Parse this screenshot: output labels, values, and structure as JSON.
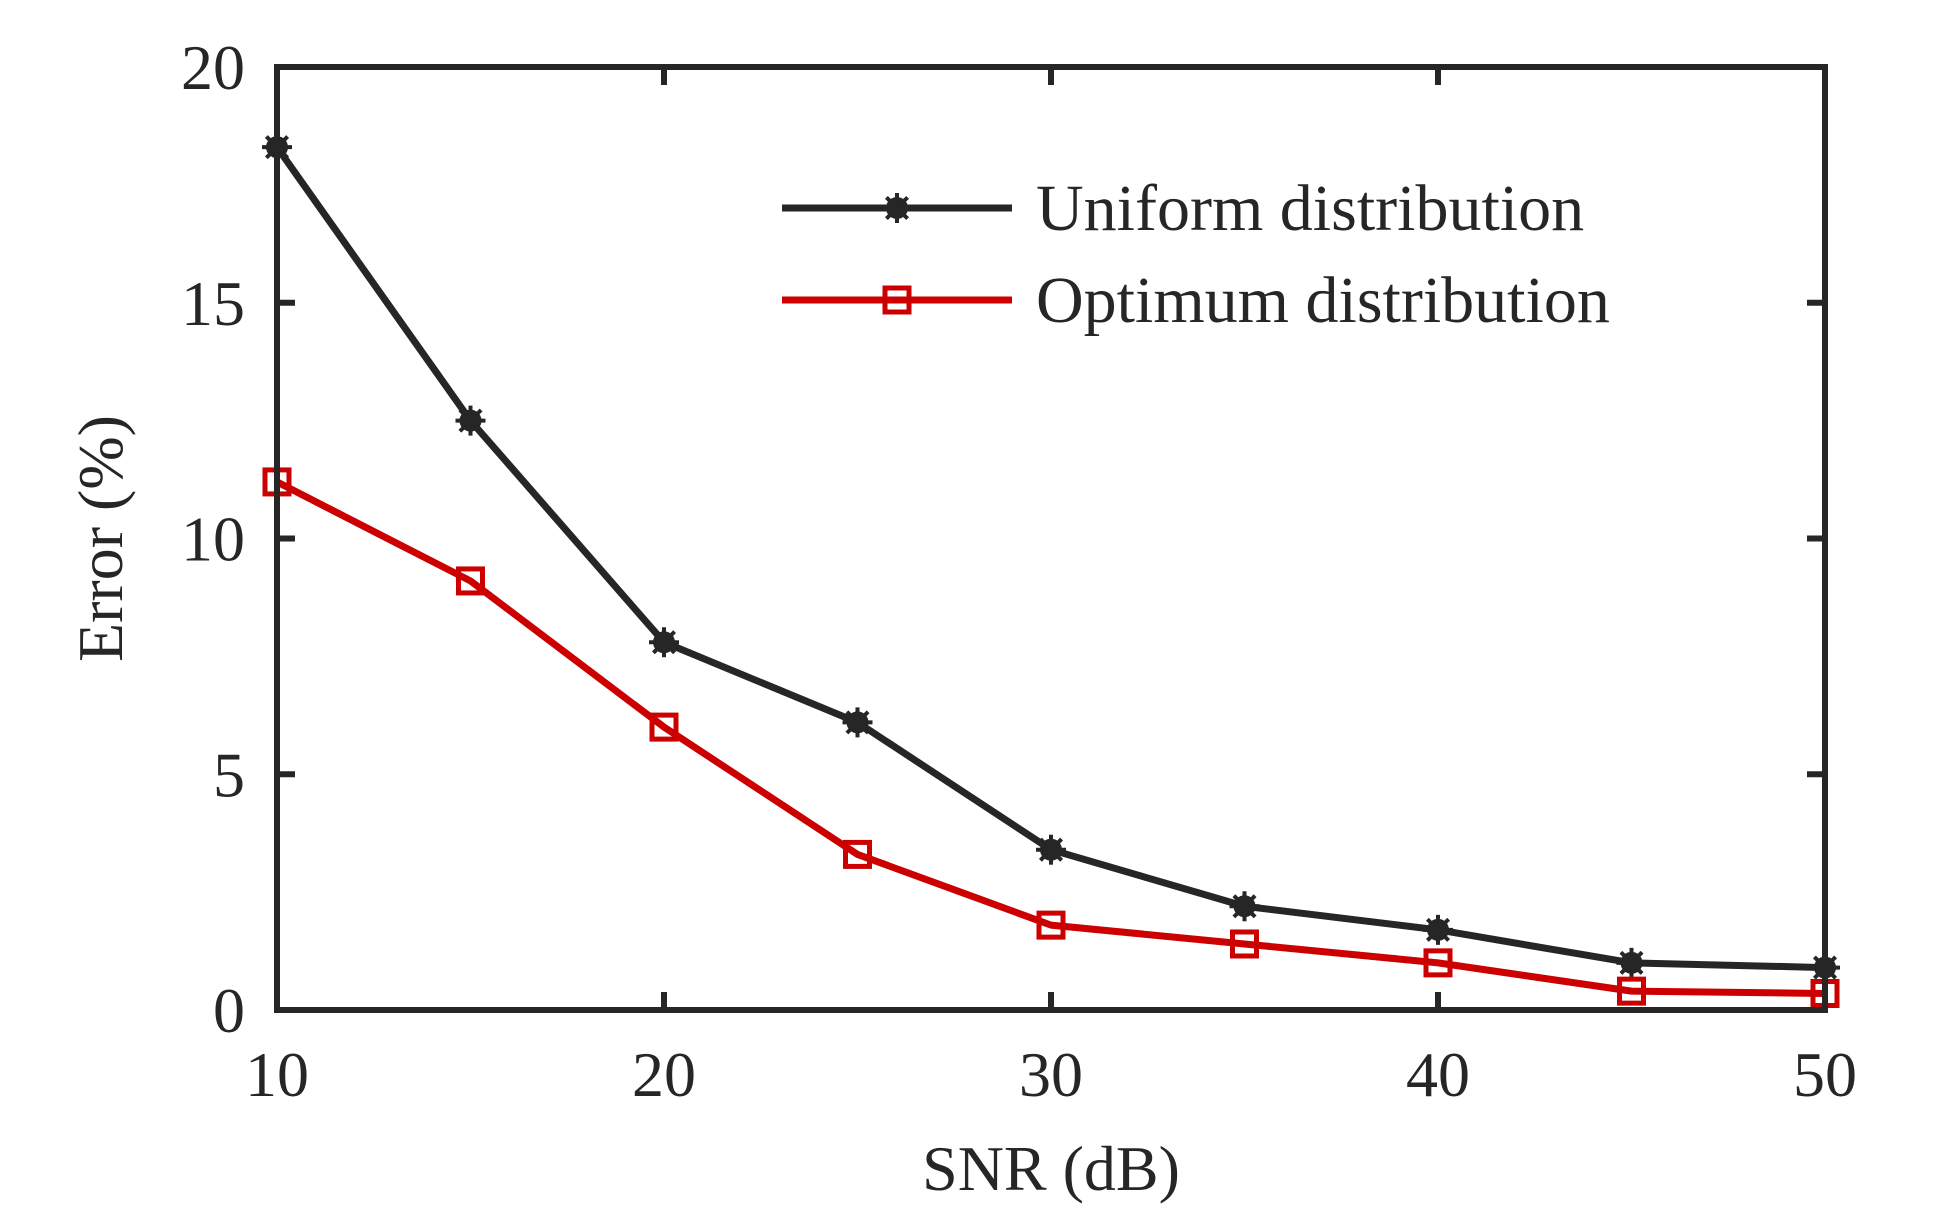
{
  "chart_data": {
    "type": "line",
    "xlabel": "SNR (dB)",
    "ylabel": "Error (%)",
    "xlim": [
      10,
      50
    ],
    "ylim": [
      0,
      20
    ],
    "xticks": [
      10,
      20,
      30,
      40,
      50
    ],
    "yticks": [
      0,
      5,
      10,
      15,
      20
    ],
    "grid": false,
    "legend_position": "top-right",
    "x": [
      10,
      15,
      20,
      25,
      30,
      35,
      40,
      45,
      50
    ],
    "series": [
      {
        "name": "Uniform distribution",
        "color": "#262626",
        "marker": "asterisk",
        "values": [
          18.3,
          12.5,
          7.8,
          6.1,
          3.4,
          2.2,
          1.7,
          1.0,
          0.9
        ]
      },
      {
        "name": "Optimum distribution",
        "color": "#cc0000",
        "marker": "square",
        "values": [
          11.2,
          9.1,
          6.0,
          3.3,
          1.8,
          1.4,
          1.0,
          0.4,
          0.35
        ]
      }
    ]
  }
}
